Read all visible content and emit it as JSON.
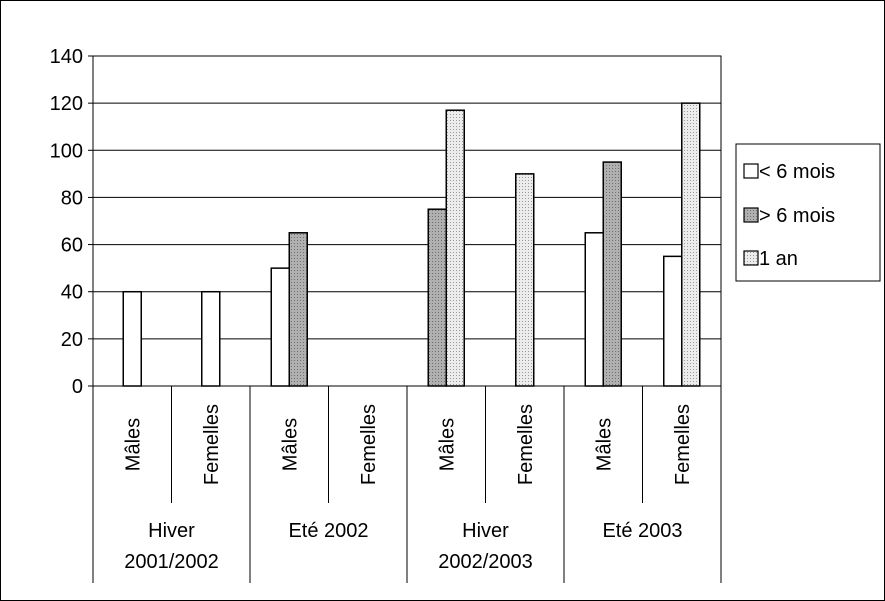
{
  "chart_data": {
    "type": "bar",
    "title": "",
    "xlabel": "",
    "ylabel": "",
    "ylim": [
      0,
      140
    ],
    "yticks": [
      0,
      20,
      40,
      60,
      80,
      100,
      120,
      140
    ],
    "grid": true,
    "legend_position": "right",
    "groups": [
      {
        "label_lines": [
          "Hiver",
          "2001/2002"
        ],
        "subcategories": [
          "Mâles",
          "Femelles"
        ]
      },
      {
        "label_lines": [
          "Eté 2002"
        ],
        "subcategories": [
          "Mâles",
          "Femelles"
        ]
      },
      {
        "label_lines": [
          "Hiver",
          "2002/2003"
        ],
        "subcategories": [
          "Mâles",
          "Femelles"
        ]
      },
      {
        "label_lines": [
          "Eté 2003"
        ],
        "subcategories": [
          "Mâles",
          "Femelles"
        ]
      }
    ],
    "series": [
      {
        "name": "< 6 mois",
        "fill": "#ffffff",
        "values": [
          40,
          40,
          50,
          null,
          null,
          null,
          65,
          55
        ]
      },
      {
        "name": "> 6 mois",
        "fill": "#b4b4b4",
        "values": [
          null,
          null,
          65,
          null,
          75,
          null,
          95,
          null
        ]
      },
      {
        "name": "1 an",
        "fill": "#dcdcdc",
        "values": [
          null,
          null,
          null,
          null,
          117,
          90,
          null,
          120
        ]
      }
    ]
  }
}
